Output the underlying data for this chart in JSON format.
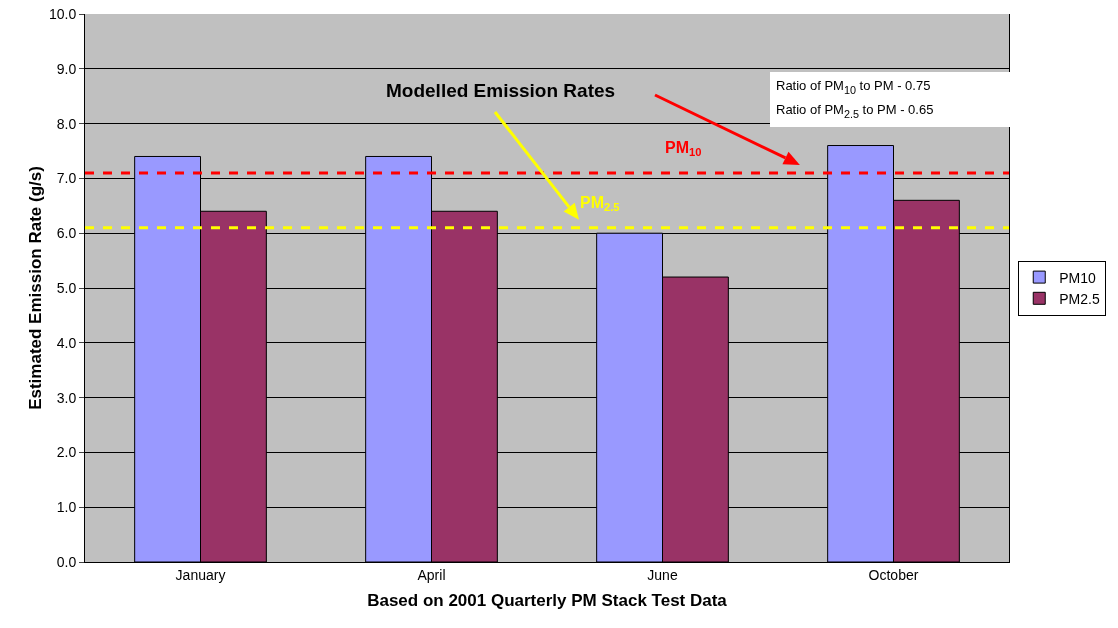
{
  "chart_data": {
    "type": "bar",
    "xlabel": "Based on 2001 Quarterly PM Stack Test Data",
    "ylabel": "Estimated Emission Rate (g/s)",
    "categories": [
      "January",
      "April",
      "June",
      "October"
    ],
    "series": [
      {
        "name": "PM10",
        "color": "#9999ff",
        "values": [
          7.4,
          7.4,
          6.0,
          7.6
        ]
      },
      {
        "name": "PM2.5",
        "color": "#993366",
        "values": [
          6.4,
          6.4,
          5.2,
          6.6
        ]
      }
    ],
    "ylim": [
      0,
      10
    ],
    "yticks": [
      {
        "value": 0,
        "label": "0.0"
      },
      {
        "value": 1,
        "label": "1.0"
      },
      {
        "value": 2,
        "label": "2.0"
      },
      {
        "value": 3,
        "label": "3.0"
      },
      {
        "value": 4,
        "label": "4.0"
      },
      {
        "value": 5,
        "label": "5.0"
      },
      {
        "value": 6,
        "label": "6.0"
      },
      {
        "value": 7,
        "label": "7.0"
      },
      {
        "value": 8,
        "label": "8.0"
      },
      {
        "value": 9,
        "label": "9.0"
      },
      {
        "value": 10,
        "label": "10.0"
      }
    ],
    "ref_lines": [
      {
        "axis": "y",
        "value": 7.1,
        "label": "PM$_{10}$",
        "color": "#ff0000",
        "line_style": "dashed"
      },
      {
        "axis": "y",
        "value": 6.1,
        "label": "PM$_{2.5}$",
        "color": "#ffff00",
        "line_style": "dashed"
      }
    ],
    "annotations": [
      "Modelled Emission Rates",
      "Ratio of PM$_{10}$ to PM - 0.75",
      "Ratio of PM$_{2.5}$ to PM - 0.65"
    ],
    "grid": "y",
    "legend": "right"
  }
}
